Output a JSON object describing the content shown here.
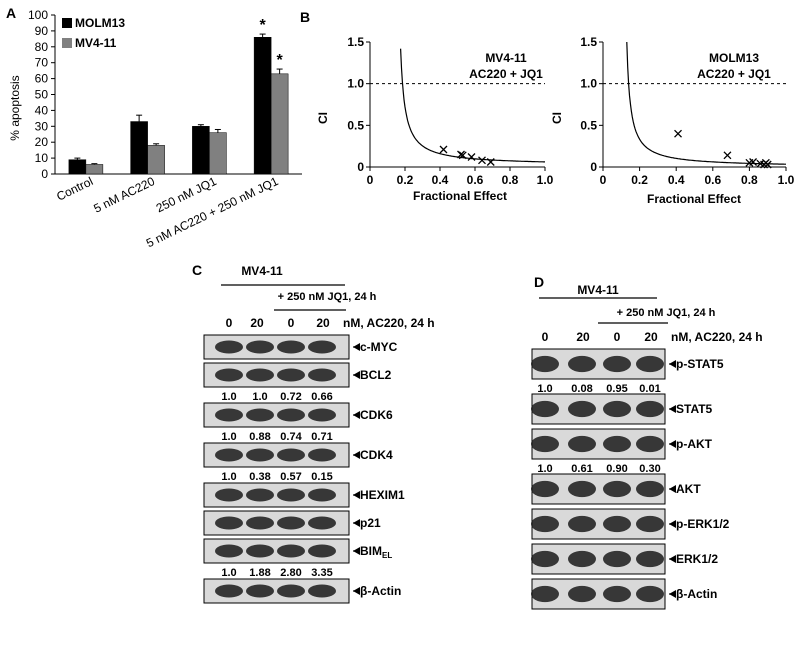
{
  "colors": {
    "molm13": "#000000",
    "mv411": "#808080"
  },
  "panelA": {
    "label": "A",
    "ylabel": "% apoptosis",
    "legend": [
      "MOLM13",
      "MV4-11"
    ],
    "categories": [
      "Control",
      "5 nM AC220",
      "250 nM JQ1",
      "5 nM AC220 + 250 nM JQ1"
    ],
    "yticks": [
      "0",
      "10",
      "20",
      "30",
      "40",
      "50",
      "60",
      "70",
      "80",
      "90",
      "100"
    ],
    "significance": "*"
  },
  "panelB": {
    "label": "B",
    "left": {
      "title1": "MV4-11",
      "title2": "AC220 + JQ1"
    },
    "right": {
      "title1": "MOLM13",
      "title2": "AC220 + JQ1"
    },
    "ylabel": "CI",
    "xlabel": "Fractional Effect",
    "yticks": [
      "0",
      "0.5",
      "1.0",
      "1.5"
    ],
    "xticks": [
      "0",
      "0.2",
      "0.4",
      "0.6",
      "0.8",
      "1.0"
    ]
  },
  "panelC": {
    "label": "C",
    "cell": "MV4-11",
    "treatment": "+ 250 nM JQ1, 24 h",
    "conc": [
      "0",
      "20",
      "0",
      "20"
    ],
    "conc_unit": "nM, AC220, 24 h",
    "blots": [
      {
        "name": "c-MYC",
        "q": []
      },
      {
        "name": "BCL2",
        "q": [
          "1.0",
          "1.0",
          "0.72",
          "0.66"
        ]
      },
      {
        "name": "CDK6",
        "q": [
          "1.0",
          "0.88",
          "0.74",
          "0.71"
        ]
      },
      {
        "name": "CDK4",
        "q": [
          "1.0",
          "0.38",
          "0.57",
          "0.15"
        ]
      },
      {
        "name": "HEXIM1",
        "q": []
      },
      {
        "name": "p21",
        "q": []
      },
      {
        "name": "BIM",
        "sub": "EL",
        "q": [
          "1.0",
          "1.88",
          "2.80",
          "3.35"
        ]
      },
      {
        "name": "β-Actin",
        "q": []
      }
    ]
  },
  "panelD": {
    "label": "D",
    "cell": "MV4-11",
    "treatment": "+ 250 nM JQ1, 24 h",
    "conc": [
      "0",
      "20",
      "0",
      "20"
    ],
    "conc_unit": "nM, AC220, 24 h",
    "blots": [
      {
        "name": "p-STAT5",
        "q": [
          "1.0",
          "0.08",
          "0.95",
          "0.01"
        ]
      },
      {
        "name": "STAT5",
        "q": []
      },
      {
        "name": "p-AKT",
        "q": [
          "1.0",
          "0.61",
          "0.90",
          "0.30"
        ]
      },
      {
        "name": "AKT",
        "q": []
      },
      {
        "name": "p-ERK1/2",
        "q": []
      },
      {
        "name": "ERK1/2",
        "q": []
      },
      {
        "name": "β-Actin",
        "q": []
      }
    ]
  },
  "chart_data": [
    {
      "type": "bar",
      "ylabel": "% apoptosis",
      "ylim": [
        0,
        100
      ],
      "categories": [
        "Control",
        "5 nM AC220",
        "250 nM JQ1",
        "5 nM AC220 + 250 nM JQ1"
      ],
      "series": [
        {
          "name": "MOLM13",
          "values": [
            9,
            33,
            30,
            86
          ],
          "errors": [
            1,
            4,
            1,
            2
          ]
        },
        {
          "name": "MV4-11",
          "values": [
            6,
            18,
            26,
            63
          ],
          "errors": [
            0.5,
            1,
            2,
            3
          ]
        }
      ],
      "legend": "top-left"
    },
    {
      "type": "scatter",
      "title": "MV4-11 AC220 + JQ1",
      "xlabel": "Fractional Effect",
      "ylabel": "CI",
      "xlim": [
        0,
        1.0
      ],
      "ylim": [
        0,
        1.5
      ],
      "reference_line": 1.0,
      "points": [
        [
          0.42,
          0.21
        ],
        [
          0.52,
          0.15
        ],
        [
          0.53,
          0.14
        ],
        [
          0.58,
          0.12
        ],
        [
          0.64,
          0.08
        ],
        [
          0.69,
          0.06
        ]
      ]
    },
    {
      "type": "scatter",
      "title": "MOLM13 AC220 + JQ1",
      "xlabel": "Fractional Effect",
      "ylabel": "CI",
      "xlim": [
        0,
        1.0
      ],
      "ylim": [
        0,
        1.5
      ],
      "reference_line": 1.0,
      "points": [
        [
          0.41,
          0.4
        ],
        [
          0.68,
          0.14
        ],
        [
          0.8,
          0.05
        ],
        [
          0.82,
          0.06
        ],
        [
          0.86,
          0.04
        ],
        [
          0.88,
          0.03
        ],
        [
          0.89,
          0.05
        ],
        [
          0.9,
          0.03
        ]
      ]
    }
  ]
}
